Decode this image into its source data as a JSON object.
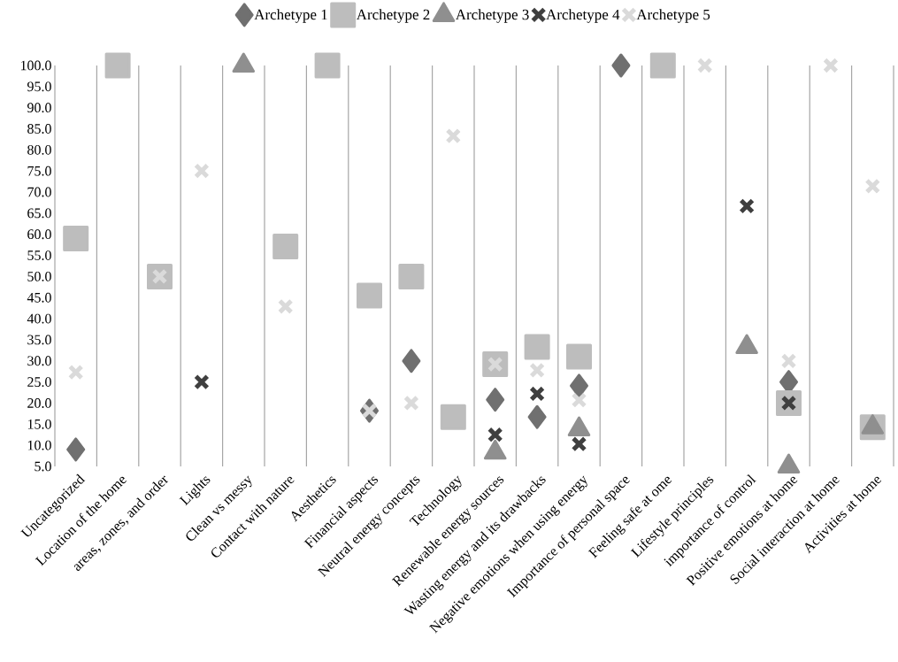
{
  "chart_data": {
    "type": "scatter",
    "categories": [
      "Uncategorized",
      "Location of the home",
      "areas, zones, and order",
      "Lights",
      "Clean vs messy",
      "Contact with nature",
      "Aesthetics",
      "Financial aspects",
      "Neutral energy concepts",
      "Technology",
      "Renewable energy sources",
      "Wasting energy and its drawbacks",
      "Negative emotions when using energy",
      "Importance of personal space",
      "Feeling safe at ome",
      "Lifestyle principles",
      "importance of control",
      "Positive emotions at home",
      "Social interaction at home",
      "Activities at home"
    ],
    "series": [
      {
        "name": "Archetype 1",
        "color": "#707070",
        "marker": "diamond",
        "values": [
          9.0,
          null,
          null,
          null,
          null,
          null,
          null,
          18.2,
          30.0,
          null,
          20.8,
          16.7,
          24.1,
          100.0,
          null,
          null,
          null,
          25.0,
          null,
          null
        ]
      },
      {
        "name": "Archetype 2",
        "color": "#bdbdbd",
        "marker": "square",
        "values": [
          59.0,
          100.0,
          50.0,
          null,
          null,
          57.1,
          100.0,
          45.5,
          50.0,
          16.7,
          29.2,
          33.3,
          31.0,
          null,
          100.0,
          null,
          null,
          20.0,
          null,
          14.3
        ]
      },
      {
        "name": "Archetype 3",
        "color": "#8f8f8f",
        "marker": "triangle",
        "values": [
          null,
          null,
          null,
          null,
          100.0,
          null,
          null,
          null,
          null,
          null,
          8.3,
          null,
          13.8,
          null,
          null,
          null,
          33.3,
          5.0,
          null,
          14.3
        ]
      },
      {
        "name": "Archetype 4",
        "color": "#3f3f3f",
        "marker": "cross",
        "values": [
          null,
          null,
          null,
          25.0,
          null,
          null,
          null,
          null,
          null,
          null,
          12.5,
          22.2,
          10.3,
          null,
          null,
          null,
          66.7,
          20.0,
          null,
          null
        ]
      },
      {
        "name": "Archetype 5",
        "color": "#dadada",
        "marker": "cross",
        "values": [
          27.3,
          null,
          50.0,
          75.0,
          null,
          42.9,
          null,
          18.2,
          20.0,
          83.3,
          29.2,
          27.8,
          20.7,
          null,
          null,
          100.0,
          null,
          30.0,
          100.0,
          71.4
        ]
      }
    ],
    "ylim": [
      5,
      100
    ],
    "yticks": [
      {
        "value": 5,
        "label": "5.0"
      },
      {
        "value": 10,
        "label": "10.0"
      },
      {
        "value": 15,
        "label": "15.0"
      },
      {
        "value": 20,
        "label": "20.0"
      },
      {
        "value": 25,
        "label": "25.0"
      },
      {
        "value": 30,
        "label": "30.0"
      },
      {
        "value": 35,
        "label": "35.0"
      },
      {
        "value": 40,
        "label": "40.0"
      },
      {
        "value": 45,
        "label": "45.0"
      },
      {
        "value": 50,
        "label": "50.0"
      },
      {
        "value": 55,
        "label": "55.0"
      },
      {
        "value": 60,
        "label": "60.0"
      },
      {
        "value": 65,
        "label": "65.0"
      },
      {
        "value": 70,
        "label": "70.0"
      },
      {
        "value": 75,
        "label": "75.0"
      },
      {
        "value": 80,
        "label": "80.0"
      },
      {
        "value": 85,
        "label": "85.0"
      },
      {
        "value": 90,
        "label": "90.0"
      },
      {
        "value": 95,
        "label": "95.0"
      },
      {
        "value": 100,
        "label": "100.0"
      }
    ],
    "grid": "x",
    "legend": "top"
  }
}
